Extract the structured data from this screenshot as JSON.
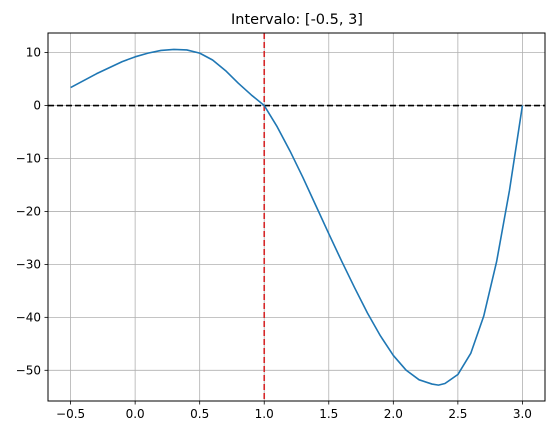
{
  "chart_data": {
    "type": "line",
    "title": "Intervalo: [-0.5, 3]",
    "xlabel": "",
    "ylabel": "",
    "xlim": [
      -0.675,
      3.175
    ],
    "ylim": [
      -55.8,
      13.7
    ],
    "x_ticks": [
      -0.5,
      0.0,
      0.5,
      1.0,
      1.5,
      2.0,
      2.5,
      3.0
    ],
    "x_tick_labels": [
      "−0.5",
      "0.0",
      "0.5",
      "1.0",
      "1.5",
      "2.0",
      "2.5",
      "3.0"
    ],
    "y_ticks": [
      10,
      0,
      -10,
      -20,
      -30,
      -40,
      -50
    ],
    "y_tick_labels": [
      "10",
      "0",
      "−10",
      "−20",
      "−30",
      "−40",
      "−50"
    ],
    "grid": true,
    "series": [
      {
        "color": "#1f77b4",
        "x": [
          -0.5,
          -0.3,
          -0.1,
          0.0,
          0.1,
          0.2,
          0.3,
          0.4,
          0.5,
          0.6,
          0.7,
          0.8,
          0.9,
          1.0,
          1.1,
          1.2,
          1.3,
          1.4,
          1.5,
          1.6,
          1.7,
          1.8,
          1.9,
          2.0,
          2.1,
          2.2,
          2.3,
          2.35,
          2.4,
          2.5,
          2.6,
          2.7,
          2.8,
          2.9,
          3.0
        ],
        "y": [
          3.4,
          6.0,
          8.3,
          9.2,
          9.9,
          10.4,
          10.6,
          10.5,
          9.9,
          8.6,
          6.6,
          4.2,
          2.0,
          0.0,
          -4.0,
          -8.6,
          -13.6,
          -18.9,
          -24.2,
          -29.4,
          -34.4,
          -39.2,
          -43.5,
          -47.2,
          -50.0,
          -51.8,
          -52.6,
          -52.8,
          -52.5,
          -50.8,
          -46.8,
          -39.8,
          -29.5,
          -16.0,
          0.0
        ]
      }
    ],
    "reference_lines": [
      {
        "orientation": "horizontal",
        "value": 0,
        "color": "#000000",
        "style": "dashed"
      },
      {
        "orientation": "vertical",
        "value": 1.0,
        "color": "#d62728",
        "style": "dashed"
      }
    ]
  }
}
